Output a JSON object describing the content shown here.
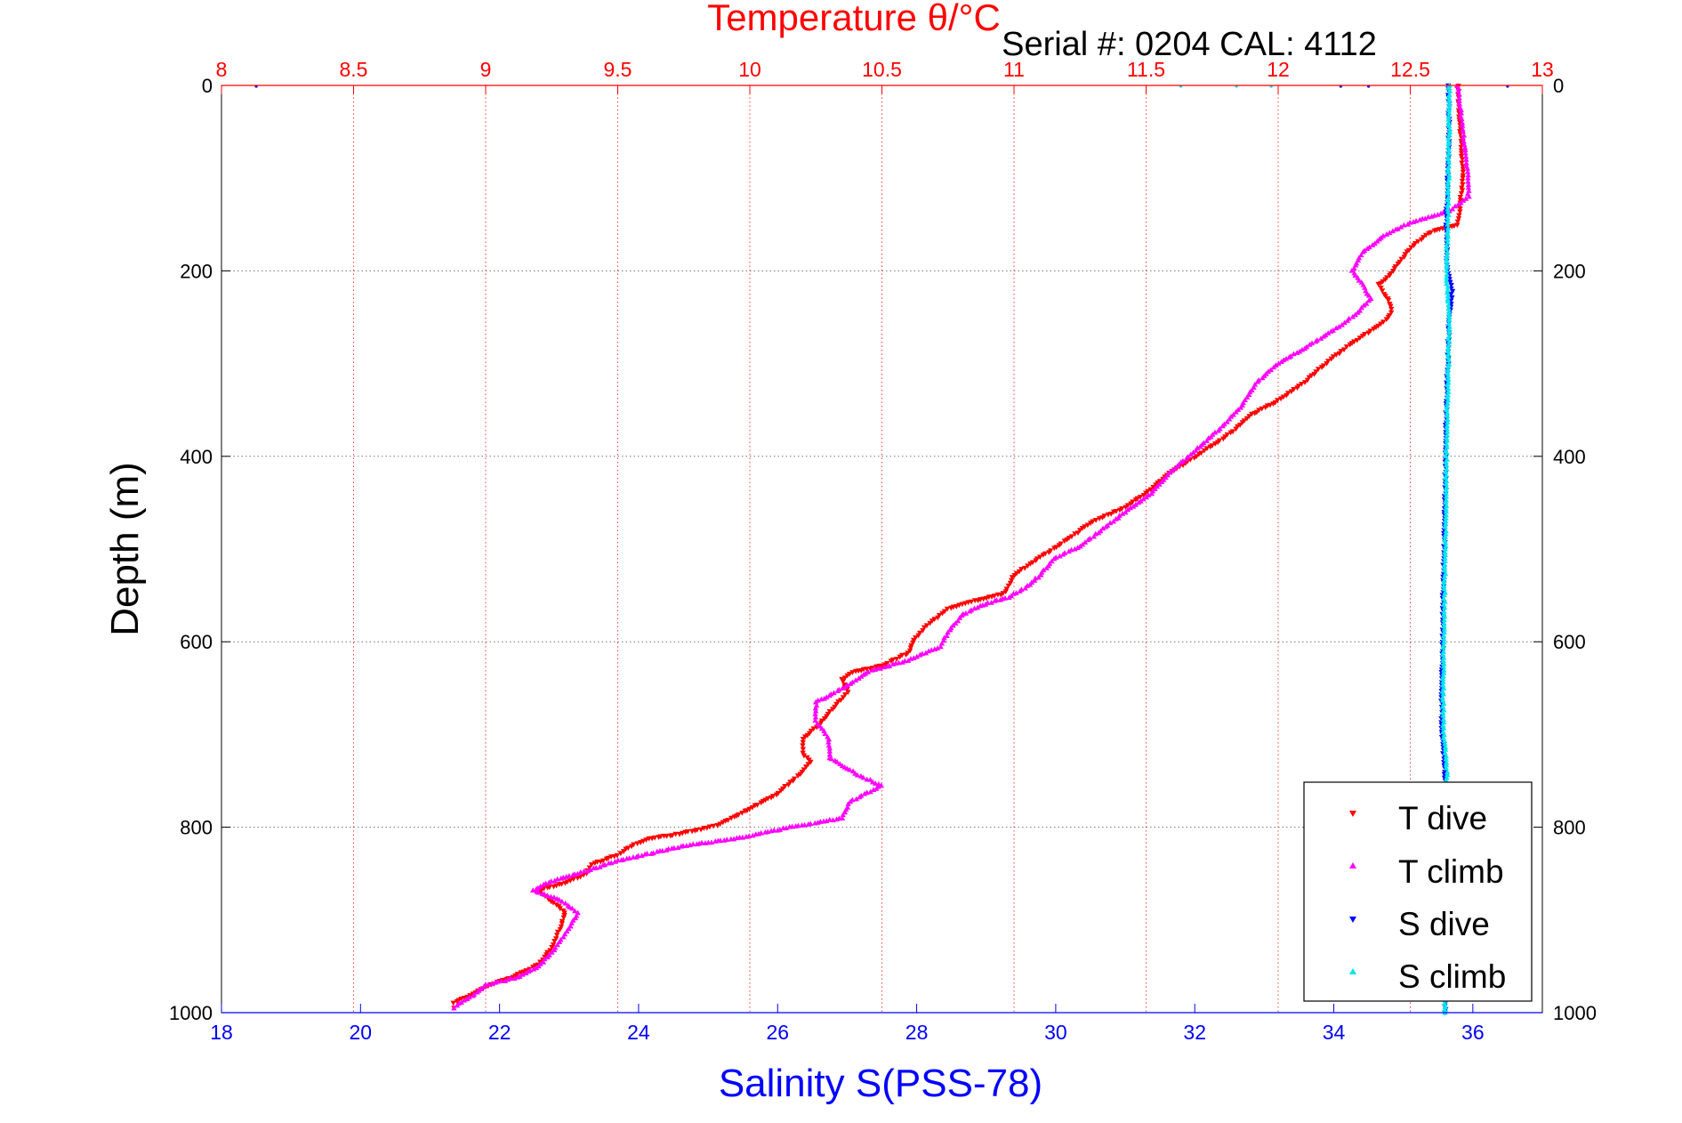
{
  "chart_data": {
    "type": "scatter",
    "title": "Temperature θ/°C",
    "subtitle": "Serial #: 0204  CAL: 4112",
    "ylabel": "Depth (m)",
    "xlabel": "Salinity S(PSS-78)",
    "y_reversed": true,
    "ylim": [
      0,
      1000
    ],
    "y_ticks": [
      "0",
      "200",
      "400",
      "600",
      "800",
      "1000"
    ],
    "temperature_axis": {
      "position": "top",
      "color": "#ff0000",
      "range": [
        8,
        13
      ],
      "ticks": [
        "8",
        "8.5",
        "9",
        "9.5",
        "10",
        "10.5",
        "11",
        "11.5",
        "12",
        "12.5",
        "13"
      ]
    },
    "salinity_axis": {
      "position": "bottom",
      "color": "#0000ff",
      "range": [
        18,
        37
      ],
      "ticks": [
        "18",
        "20",
        "22",
        "24",
        "26",
        "28",
        "30",
        "32",
        "34",
        "36"
      ]
    },
    "grid": true,
    "legend_position": "bottom-right",
    "series": [
      {
        "name": "T dive",
        "axis": "temperature",
        "color": "#ff0000",
        "marker": "triangle-down",
        "points": [
          [
            12.68,
            0
          ],
          [
            12.69,
            50
          ],
          [
            12.7,
            100
          ],
          [
            12.68,
            150
          ],
          [
            12.58,
            158
          ],
          [
            12.52,
            170
          ],
          [
            12.46,
            190
          ],
          [
            12.42,
            205
          ],
          [
            12.38,
            215
          ],
          [
            12.4,
            225
          ],
          [
            12.42,
            232
          ],
          [
            12.43,
            245
          ],
          [
            12.4,
            255
          ],
          [
            12.35,
            265
          ],
          [
            12.28,
            278
          ],
          [
            12.2,
            295
          ],
          [
            12.1,
            320
          ],
          [
            12.0,
            340
          ],
          [
            11.9,
            355
          ],
          [
            11.82,
            375
          ],
          [
            11.74,
            390
          ],
          [
            11.68,
            402
          ],
          [
            11.58,
            420
          ],
          [
            11.5,
            440
          ],
          [
            11.42,
            455
          ],
          [
            11.3,
            470
          ],
          [
            11.2,
            490
          ],
          [
            11.12,
            505
          ],
          [
            11.05,
            518
          ],
          [
            11.0,
            528
          ],
          [
            10.98,
            540
          ],
          [
            10.96,
            548
          ],
          [
            10.85,
            556
          ],
          [
            10.75,
            565
          ],
          [
            10.68,
            580
          ],
          [
            10.62,
            598
          ],
          [
            10.6,
            612
          ],
          [
            10.5,
            626
          ],
          [
            10.4,
            632
          ],
          [
            10.35,
            640
          ],
          [
            10.37,
            655
          ],
          [
            10.32,
            670
          ],
          [
            10.26,
            690
          ],
          [
            10.2,
            705
          ],
          [
            10.2,
            720
          ],
          [
            10.23,
            730
          ],
          [
            10.18,
            745
          ],
          [
            10.1,
            765
          ],
          [
            10.0,
            780
          ],
          [
            9.9,
            795
          ],
          [
            9.85,
            800
          ],
          [
            9.72,
            808
          ],
          [
            9.62,
            812
          ],
          [
            9.55,
            820
          ],
          [
            9.5,
            830
          ],
          [
            9.4,
            840
          ],
          [
            9.38,
            850
          ],
          [
            9.3,
            860
          ],
          [
            9.2,
            868
          ],
          [
            9.25,
            880
          ],
          [
            9.3,
            892
          ],
          [
            9.28,
            910
          ],
          [
            9.25,
            930
          ],
          [
            9.2,
            948
          ],
          [
            9.1,
            962
          ],
          [
            9.0,
            972
          ],
          [
            8.95,
            980
          ],
          [
            8.88,
            990
          ],
          [
            8.88,
            995
          ]
        ]
      },
      {
        "name": "T climb",
        "axis": "temperature",
        "color": "#ff00ff",
        "marker": "triangle-up",
        "points": [
          [
            12.68,
            0
          ],
          [
            12.7,
            50
          ],
          [
            12.72,
            100
          ],
          [
            12.72,
            120
          ],
          [
            12.65,
            135
          ],
          [
            12.5,
            148
          ],
          [
            12.4,
            162
          ],
          [
            12.32,
            180
          ],
          [
            12.28,
            200
          ],
          [
            12.32,
            215
          ],
          [
            12.35,
            230
          ],
          [
            12.3,
            245
          ],
          [
            12.22,
            262
          ],
          [
            12.12,
            280
          ],
          [
            12.0,
            300
          ],
          [
            11.92,
            320
          ],
          [
            11.85,
            350
          ],
          [
            11.78,
            370
          ],
          [
            11.72,
            385
          ],
          [
            11.66,
            400
          ],
          [
            11.58,
            420
          ],
          [
            11.52,
            440
          ],
          [
            11.42,
            460
          ],
          [
            11.32,
            482
          ],
          [
            11.25,
            497
          ],
          [
            11.15,
            510
          ],
          [
            11.1,
            528
          ],
          [
            11.05,
            540
          ],
          [
            10.98,
            552
          ],
          [
            10.88,
            560
          ],
          [
            10.8,
            572
          ],
          [
            10.75,
            590
          ],
          [
            10.72,
            605
          ],
          [
            10.6,
            620
          ],
          [
            10.45,
            632
          ],
          [
            10.38,
            645
          ],
          [
            10.32,
            655
          ],
          [
            10.25,
            665
          ],
          [
            10.25,
            685
          ],
          [
            10.3,
            705
          ],
          [
            10.3,
            725
          ],
          [
            10.42,
            745
          ],
          [
            10.5,
            755
          ],
          [
            10.38,
            772
          ],
          [
            10.35,
            790
          ],
          [
            10.15,
            800
          ],
          [
            9.95,
            812
          ],
          [
            9.75,
            820
          ],
          [
            9.5,
            836
          ],
          [
            9.35,
            850
          ],
          [
            9.25,
            858
          ],
          [
            9.18,
            868
          ],
          [
            9.28,
            878
          ],
          [
            9.35,
            892
          ],
          [
            9.3,
            915
          ],
          [
            9.25,
            935
          ],
          [
            9.2,
            950
          ],
          [
            9.12,
            962
          ],
          [
            9.0,
            970
          ],
          [
            8.95,
            982
          ],
          [
            8.9,
            990
          ],
          [
            8.88,
            995
          ]
        ]
      },
      {
        "name": "S dive",
        "axis": "salinity",
        "color": "#0000ff",
        "marker": "triangle-down",
        "points": [
          [
            35.65,
            0
          ],
          [
            35.66,
            50
          ],
          [
            35.64,
            100
          ],
          [
            35.62,
            150
          ],
          [
            35.63,
            200
          ],
          [
            35.7,
            222
          ],
          [
            35.66,
            250
          ],
          [
            35.64,
            300
          ],
          [
            35.62,
            350
          ],
          [
            35.61,
            400
          ],
          [
            35.6,
            450
          ],
          [
            35.59,
            500
          ],
          [
            35.57,
            550
          ],
          [
            35.57,
            600
          ],
          [
            35.55,
            650
          ],
          [
            35.56,
            700
          ],
          [
            35.6,
            740
          ],
          [
            35.6,
            800
          ],
          [
            35.6,
            850
          ],
          [
            35.6,
            900
          ],
          [
            35.6,
            950
          ],
          [
            35.6,
            1000
          ]
        ]
      },
      {
        "name": "S climb",
        "axis": "salinity",
        "color": "#00e5ee",
        "marker": "triangle-up",
        "points": [
          [
            35.66,
            0
          ],
          [
            35.66,
            50
          ],
          [
            35.65,
            100
          ],
          [
            35.64,
            150
          ],
          [
            35.62,
            200
          ],
          [
            35.66,
            250
          ],
          [
            35.65,
            300
          ],
          [
            35.63,
            350
          ],
          [
            35.62,
            400
          ],
          [
            35.61,
            450
          ],
          [
            35.6,
            500
          ],
          [
            35.59,
            550
          ],
          [
            35.58,
            600
          ],
          [
            35.57,
            650
          ],
          [
            35.58,
            700
          ],
          [
            35.62,
            730
          ],
          [
            35.63,
            760
          ],
          [
            35.6,
            800
          ],
          [
            35.6,
            850
          ],
          [
            35.6,
            900
          ],
          [
            35.6,
            950
          ],
          [
            35.6,
            1000
          ]
        ]
      }
    ],
    "stray_points": [
      {
        "axis": "salinity",
        "color": "#0000ff",
        "points": [
          [
            18.5,
            0
          ],
          [
            34.1,
            0
          ],
          [
            34.5,
            0
          ],
          [
            36.5,
            0
          ]
        ]
      },
      {
        "axis": "salinity",
        "color": "#00e5ee",
        "points": [
          [
            31.8,
            0
          ],
          [
            32.6,
            0
          ],
          [
            33.1,
            0
          ]
        ]
      }
    ]
  }
}
